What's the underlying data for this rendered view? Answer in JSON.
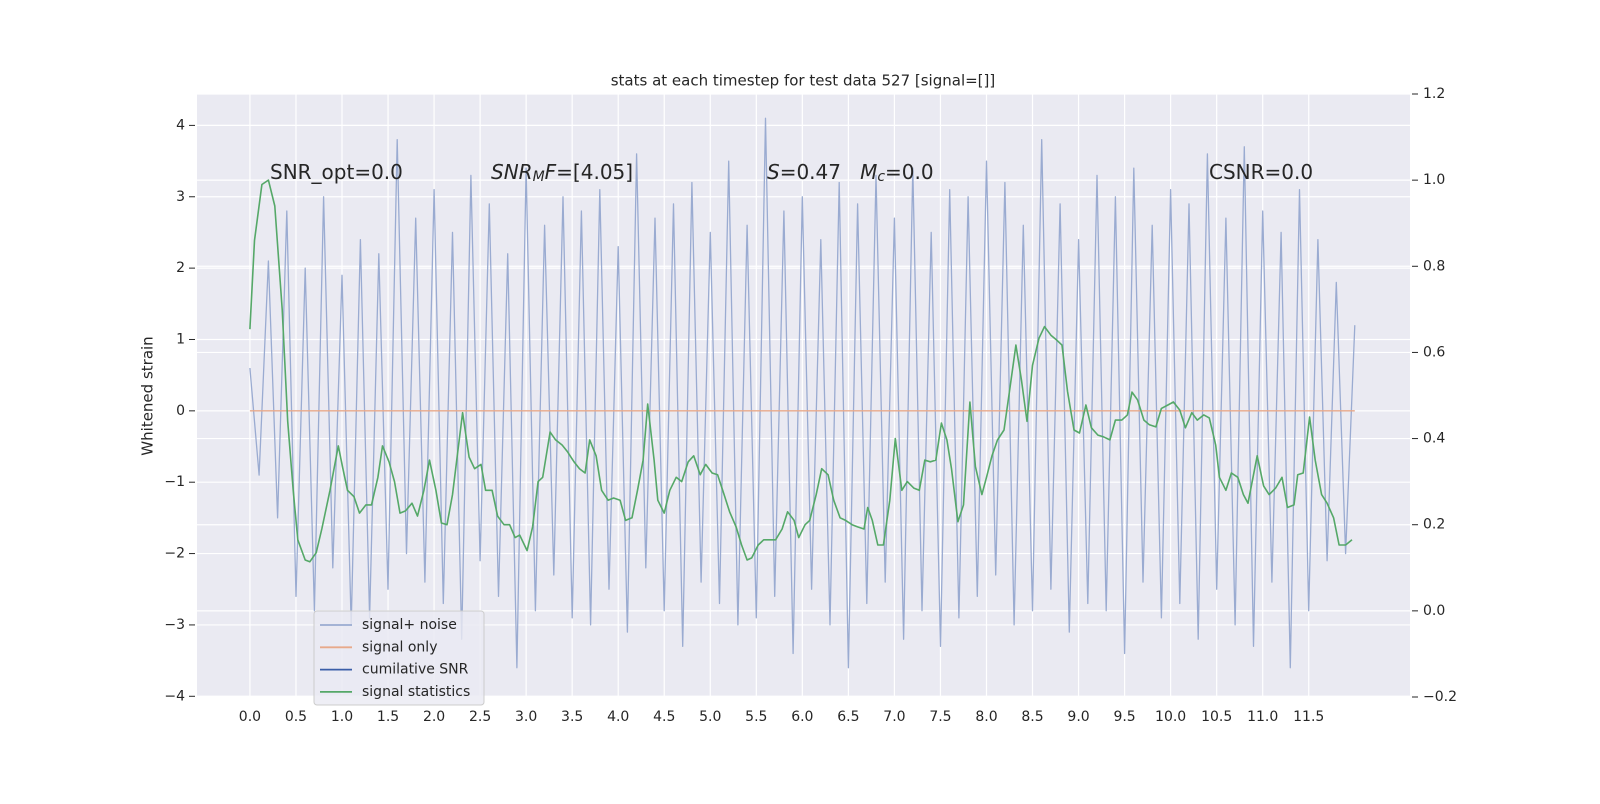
{
  "chart_data": {
    "type": "line",
    "title": "stats at each timestep for test data 527 [signal=[]]",
    "ylabel": "Whitened strain",
    "xlim": [
      -0.575,
      12.6
    ],
    "ylim": [
      -4.01,
      4.44
    ],
    "y2lim": [
      -0.2,
      1.2
    ],
    "xticks": [
      {
        "value": 0,
        "label": "0.0"
      },
      0.5,
      {
        "value": 1,
        "label": "1.0"
      },
      1.5,
      {
        "value": 2,
        "label": "2.0"
      },
      2.5,
      {
        "value": 3,
        "label": "3.0"
      },
      3.5,
      {
        "value": 4,
        "label": "4.0"
      },
      4.5,
      {
        "value": 5,
        "label": "5.0"
      },
      5.5,
      {
        "value": 6,
        "label": "6.0"
      },
      6.5,
      {
        "value": 7,
        "label": "7.0"
      },
      7.5,
      {
        "value": 8,
        "label": "8.0"
      },
      8.5,
      {
        "value": 9,
        "label": "9.0"
      },
      9.5,
      {
        "value": 10,
        "label": "10.0"
      },
      10.5,
      {
        "value": 11,
        "label": "11.0"
      },
      11.5
    ],
    "yticks": [
      {
        "value": -4,
        "label": "−4"
      },
      {
        "value": -3,
        "label": "−3"
      },
      {
        "value": -2,
        "label": "−2"
      },
      {
        "value": -1,
        "label": "−1"
      },
      0,
      1,
      2,
      3,
      4
    ],
    "y2ticks": [
      {
        "value": -0.2,
        "label": "−0.2"
      },
      {
        "value": 0,
        "label": "0.0"
      },
      0.2,
      0.4,
      0.6,
      0.8,
      {
        "value": 1,
        "label": "1.0"
      },
      1.2
    ],
    "grid": true,
    "legend": "lower left",
    "annotations": [
      [
        {
          "text": "SNR_opt=0.0",
          "style": "normal"
        }
      ],
      [
        {
          "text": "SNR",
          "style": "italic"
        },
        {
          "text": "M",
          "style": "italic-sub"
        },
        {
          "text": "F",
          "style": "italic"
        },
        {
          "text": "=[4.05]",
          "style": "normal"
        }
      ],
      [
        {
          "text": "S",
          "style": "italic"
        },
        {
          "text": "=0.47   ",
          "style": "normal"
        },
        {
          "text": "M",
          "style": "italic"
        },
        {
          "text": "c",
          "style": "italic-sub"
        },
        {
          "text": "=0.0",
          "style": "normal"
        }
      ],
      [
        {
          "text": "CSNR=0.0",
          "style": "normal"
        }
      ]
    ],
    "series": [
      {
        "name": "signal+ noise",
        "color": "#9aabd1",
        "x": [
          0.0,
          0.1,
          0.2,
          0.3,
          0.4,
          0.5,
          0.6,
          0.7,
          0.8,
          0.9,
          1.0,
          1.1,
          1.2,
          1.3,
          1.4,
          1.5,
          1.6,
          1.7,
          1.8,
          1.9,
          2.0,
          2.1,
          2.2,
          2.3,
          2.4,
          2.5,
          2.6,
          2.7,
          2.8,
          2.9,
          3.0,
          3.1,
          3.2,
          3.3,
          3.4,
          3.5,
          3.6,
          3.7,
          3.8,
          3.9,
          4.0,
          4.1,
          4.2,
          4.3,
          4.4,
          4.5,
          4.6,
          4.7,
          4.8,
          4.9,
          5.0,
          5.1,
          5.2,
          5.3,
          5.4,
          5.5,
          5.6,
          5.7,
          5.8,
          5.9,
          6.0,
          6.1,
          6.2,
          6.3,
          6.4,
          6.5,
          6.6,
          6.7,
          6.8,
          6.9,
          7.0,
          7.1,
          7.2,
          7.3,
          7.4,
          7.5,
          7.6,
          7.7,
          7.8,
          7.9,
          8.0,
          8.1,
          8.2,
          8.3,
          8.4,
          8.5,
          8.6,
          8.7,
          8.8,
          8.9,
          9.0,
          9.1,
          9.2,
          9.3,
          9.4,
          9.5,
          9.6,
          9.7,
          9.8,
          9.9,
          10.0,
          10.1,
          10.2,
          10.3,
          10.4,
          10.5,
          10.6,
          10.7,
          10.8,
          10.9,
          11.0,
          11.1,
          11.2,
          11.3,
          11.4,
          11.5,
          11.6,
          11.7,
          11.8,
          11.9,
          12.0
        ],
        "values": [
          0.6,
          -0.9,
          2.1,
          -1.5,
          2.8,
          -2.6,
          2.0,
          -2.8,
          3.0,
          -2.2,
          1.9,
          -3.0,
          2.4,
          -2.9,
          2.2,
          -2.5,
          3.8,
          -2.0,
          2.7,
          -2.4,
          3.1,
          -2.7,
          2.5,
          -3.2,
          3.3,
          -2.1,
          2.9,
          -2.6,
          2.2,
          -3.6,
          3.4,
          -2.8,
          2.6,
          -2.3,
          3.0,
          -2.9,
          2.8,
          -3.0,
          3.1,
          -2.5,
          2.3,
          -3.1,
          3.6,
          -2.2,
          2.7,
          -2.8,
          2.9,
          -3.3,
          3.2,
          -2.4,
          2.5,
          -2.7,
          3.5,
          -3.0,
          2.6,
          -2.9,
          4.1,
          -2.6,
          2.8,
          -3.4,
          3.0,
          -2.5,
          2.4,
          -3.0,
          3.2,
          -3.6,
          2.9,
          -2.7,
          3.3,
          -2.4,
          2.7,
          -3.2,
          3.4,
          -2.8,
          2.5,
          -3.3,
          3.1,
          -2.9,
          3.0,
          -2.6,
          3.5,
          -2.3,
          3.2,
          -3.0,
          2.6,
          -2.8,
          3.8,
          -2.5,
          2.9,
          -3.1,
          2.4,
          -2.7,
          3.3,
          -2.8,
          3.0,
          -3.4,
          3.4,
          -2.4,
          2.6,
          -2.9,
          3.1,
          -2.7,
          2.9,
          -3.2,
          3.6,
          -2.5,
          2.7,
          -3.0,
          3.7,
          -3.3,
          2.8,
          -2.4,
          2.5,
          -3.6,
          3.1,
          -2.8,
          2.4,
          -2.1,
          1.8,
          -2.0,
          1.2
        ]
      },
      {
        "name": "signal only",
        "color": "#e8a98a",
        "x": [
          0,
          12
        ],
        "values": [
          0,
          0
        ]
      },
      {
        "name": "cumilative SNR",
        "color": "#3b5ea8"
      },
      {
        "name": "signal statistics",
        "color": "#55a868",
        "axis": "y2",
        "x": [
          0.0,
          0.05,
          0.13,
          0.2,
          0.27,
          0.35,
          0.41,
          0.47,
          0.52,
          0.6,
          0.65,
          0.72,
          0.78,
          0.87,
          0.96,
          1.01,
          1.06,
          1.13,
          1.19,
          1.26,
          1.32,
          1.39,
          1.44,
          1.51,
          1.57,
          1.63,
          1.69,
          1.76,
          1.82,
          1.89,
          1.95,
          2.02,
          2.08,
          2.14,
          2.2,
          2.26,
          2.31,
          2.38,
          2.44,
          2.51,
          2.56,
          2.63,
          2.69,
          2.76,
          2.82,
          2.88,
          2.93,
          3.01,
          3.07,
          3.13,
          3.18,
          3.26,
          3.32,
          3.39,
          3.45,
          3.52,
          3.58,
          3.64,
          3.69,
          3.76,
          3.82,
          3.89,
          3.95,
          4.02,
          4.08,
          4.15,
          4.21,
          4.27,
          4.32,
          4.39,
          4.43,
          4.5,
          4.56,
          4.63,
          4.69,
          4.76,
          4.82,
          4.89,
          4.95,
          5.02,
          5.08,
          5.15,
          5.21,
          5.28,
          5.34,
          5.4,
          5.45,
          5.52,
          5.58,
          5.71,
          5.78,
          5.84,
          5.91,
          5.96,
          6.03,
          6.08,
          6.15,
          6.21,
          6.28,
          6.34,
          6.41,
          6.47,
          6.54,
          6.6,
          6.67,
          6.71,
          6.76,
          6.82,
          6.88,
          6.95,
          7.01,
          7.08,
          7.14,
          7.21,
          7.27,
          7.33,
          7.39,
          7.45,
          7.51,
          7.57,
          7.62,
          7.69,
          7.75,
          7.82,
          7.88,
          7.95,
          8.0,
          8.06,
          8.12,
          8.19,
          8.25,
          8.32,
          8.38,
          8.44,
          8.5,
          8.57,
          8.63,
          8.7,
          8.76,
          8.82,
          8.88,
          8.95,
          9.01,
          9.08,
          9.14,
          9.21,
          9.27,
          9.34,
          9.4,
          9.47,
          9.53,
          9.58,
          9.64,
          9.71,
          9.77,
          9.84,
          9.9,
          9.97,
          10.03,
          10.1,
          10.16,
          10.23,
          10.29,
          10.36,
          10.42,
          10.49,
          10.53,
          10.6,
          10.66,
          10.73,
          10.79,
          10.84,
          10.9,
          10.94,
          11.01,
          11.07,
          11.14,
          11.21,
          11.27,
          11.34,
          11.38,
          11.44,
          11.51,
          11.57,
          11.64,
          11.7,
          11.77,
          11.83,
          11.9,
          11.97
        ],
        "values": [
          0.654,
          0.86,
          0.99,
          1.0,
          0.94,
          0.7,
          0.44,
          0.28,
          0.165,
          0.118,
          0.114,
          0.135,
          0.19,
          0.28,
          0.383,
          0.33,
          0.28,
          0.265,
          0.227,
          0.246,
          0.246,
          0.31,
          0.383,
          0.346,
          0.3,
          0.227,
          0.232,
          0.25,
          0.22,
          0.28,
          0.35,
          0.28,
          0.204,
          0.2,
          0.27,
          0.374,
          0.46,
          0.357,
          0.33,
          0.34,
          0.28,
          0.28,
          0.22,
          0.2,
          0.2,
          0.17,
          0.176,
          0.14,
          0.195,
          0.3,
          0.31,
          0.415,
          0.397,
          0.385,
          0.369,
          0.346,
          0.33,
          0.32,
          0.397,
          0.36,
          0.28,
          0.257,
          0.262,
          0.257,
          0.21,
          0.216,
          0.28,
          0.35,
          0.48,
          0.35,
          0.257,
          0.227,
          0.28,
          0.31,
          0.3,
          0.346,
          0.36,
          0.316,
          0.34,
          0.32,
          0.316,
          0.27,
          0.23,
          0.195,
          0.153,
          0.118,
          0.123,
          0.153,
          0.165,
          0.165,
          0.19,
          0.23,
          0.21,
          0.17,
          0.2,
          0.21,
          0.27,
          0.33,
          0.316,
          0.257,
          0.216,
          0.21,
          0.2,
          0.195,
          0.19,
          0.24,
          0.21,
          0.153,
          0.153,
          0.257,
          0.4,
          0.28,
          0.3,
          0.285,
          0.28,
          0.35,
          0.346,
          0.35,
          0.436,
          0.397,
          0.33,
          0.207,
          0.246,
          0.485,
          0.335,
          0.27,
          0.31,
          0.36,
          0.397,
          0.42,
          0.51,
          0.617,
          0.535,
          0.44,
          0.57,
          0.633,
          0.66,
          0.64,
          0.629,
          0.617,
          0.51,
          0.42,
          0.413,
          0.478,
          0.425,
          0.408,
          0.404,
          0.397,
          0.443,
          0.443,
          0.455,
          0.508,
          0.49,
          0.443,
          0.432,
          0.427,
          0.47,
          0.478,
          0.485,
          0.466,
          0.425,
          0.46,
          0.443,
          0.455,
          0.448,
          0.385,
          0.31,
          0.28,
          0.32,
          0.31,
          0.27,
          0.25,
          0.316,
          0.36,
          0.29,
          0.27,
          0.285,
          0.31,
          0.24,
          0.246,
          0.316,
          0.32,
          0.45,
          0.35,
          0.27,
          0.25,
          0.216,
          0.153,
          0.153,
          0.165
        ]
      }
    ]
  }
}
